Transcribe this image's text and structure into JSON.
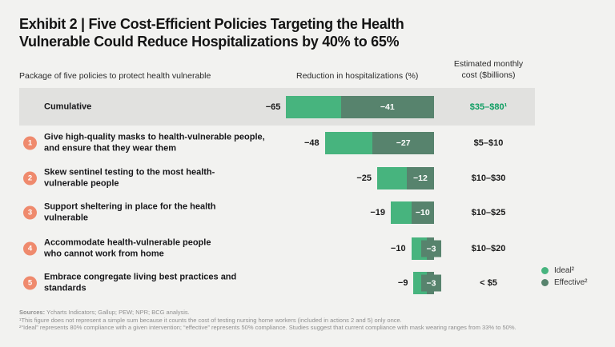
{
  "title": {
    "line1": "Exhibit 2 | Five Cost-Efficient Policies Targeting the Health",
    "line2": "Vulnerable Could Reduce Hospitalizations by 40% to 65%"
  },
  "columns": {
    "left": "Package of five policies to protect health vulnerable",
    "center": "Reduction in hospitalizations (%)",
    "right_line1": "Estimated monthly",
    "right_line2": "cost ($billions)"
  },
  "legend": {
    "ideal_label": "Ideal²",
    "effective_label": "Effective²"
  },
  "colors": {
    "ideal": "#47b47e",
    "effective": "#57836d",
    "number_badge": "#ef8a6d",
    "highlight_cost_text": "#0f9e63",
    "cumulative_band": "#e1e1df",
    "background": "#f2f2f0"
  },
  "footer": {
    "sources_label": "Sources:",
    "sources_text": "Ycharts Indicators; Gallup; PEW; NPR; BCG analysis.",
    "footnote1": "¹This figure does not represent a simple sum because it counts the cost of testing nursing home workers (included in actions 2 and 5) only once.",
    "footnote2": "²“Ideal” represents 80% compliance with a given intervention; “effective” represents 50% compliance. Studies suggest that current compliance with mask wearing ranges from 33% to 50%."
  },
  "chart_data": {
    "type": "bar",
    "orientation": "horizontal",
    "title": "Reduction in hospitalizations (%)",
    "xlim": [
      -70,
      0
    ],
    "series": [
      "Ideal",
      "Effective"
    ],
    "legend_position": "bottom-right",
    "rows": [
      {
        "num": "",
        "label": "Cumulative",
        "ideal": -65,
        "effective": -41,
        "ideal_label": "−65",
        "effective_label": "−41",
        "cost": "$35–$80¹",
        "highlight": true
      },
      {
        "num": "1",
        "label": "Give high-quality masks to health-vulnerable people, and ensure that they wear them",
        "ideal": -48,
        "effective": -27,
        "ideal_label": "−48",
        "effective_label": "−27",
        "cost": "$5–$10"
      },
      {
        "num": "2",
        "label": "Skew sentinel testing to the most health-vulnerable people",
        "ideal": -25,
        "effective": -12,
        "ideal_label": "−25",
        "effective_label": "−12",
        "cost": "$10–$30"
      },
      {
        "num": "3",
        "label": "Support sheltering in place for the health vulnerable",
        "ideal": -19,
        "effective": -10,
        "ideal_label": "−19",
        "effective_label": "−10",
        "cost": "$10–$25"
      },
      {
        "num": "4",
        "label": "Accommodate health-vulnerable people who cannot work from home",
        "ideal": -10,
        "effective": -3,
        "ideal_label": "−10",
        "effective_label": "−3",
        "cost": "$10–$20"
      },
      {
        "num": "5",
        "label": "Embrace congregate living best practices and standards",
        "ideal": -9,
        "effective": -3,
        "ideal_label": "−9",
        "effective_label": "−3",
        "cost": "< $5"
      }
    ]
  }
}
